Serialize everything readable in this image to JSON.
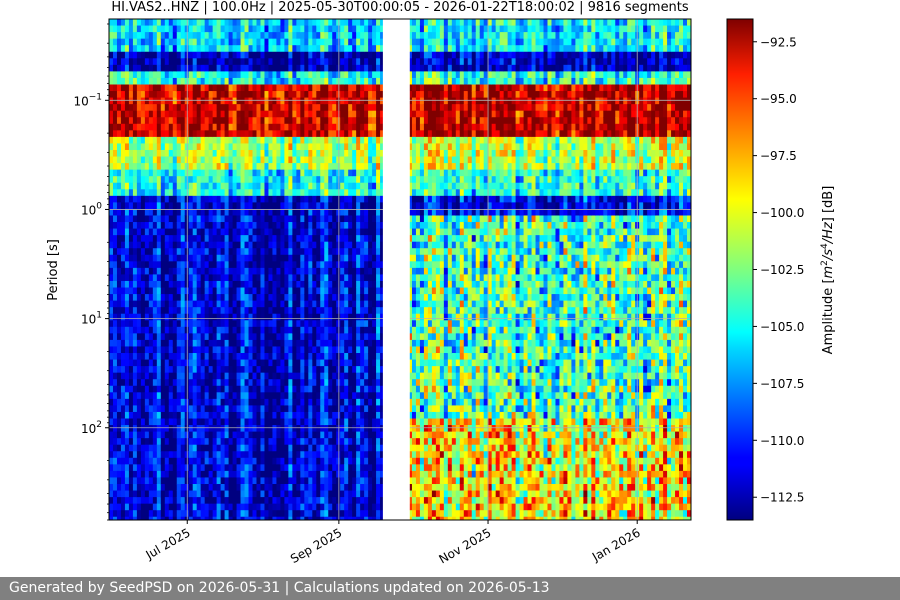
{
  "chart_data": {
    "type": "heatmap",
    "title": "HI.VAS2..HNZ | 100.0Hz | 2025-05-30T00:00:05 - 2026-01-22T18:00:02 | 9816 segments",
    "ylabel": "Period [s]",
    "colorbar_label": "Amplitude [m²/s⁴/Hz] [dB]",
    "y_scale": "log",
    "y_inverted": true,
    "ylim": [
      0.018,
      700
    ],
    "y_ticks": [
      {
        "value": 0.1,
        "base": "10",
        "exp": "−1"
      },
      {
        "value": 1,
        "base": "10",
        "exp": "0"
      },
      {
        "value": 10,
        "base": "10",
        "exp": "1"
      },
      {
        "value": 100,
        "base": "10",
        "exp": "2"
      }
    ],
    "xlim": [
      "2025-05-30",
      "2026-01-23"
    ],
    "x_ticks": [
      {
        "label": "Jul 2025",
        "date": "2025-07-01"
      },
      {
        "label": "Sep 2025",
        "date": "2025-09-01"
      },
      {
        "label": "Nov 2025",
        "date": "2025-11-01"
      },
      {
        "label": "Jan 2026",
        "date": "2026-01-01"
      }
    ],
    "data_gap": [
      "2025-09-19",
      "2025-09-30"
    ],
    "color_range": [
      -113.5,
      -91.5
    ],
    "colorbar_ticks": [
      "−92.5",
      "−95.0",
      "−97.5",
      "−100.0",
      "−102.5",
      "−105.0",
      "−107.5",
      "−110.0",
      "−112.5"
    ],
    "colorbar_tick_values": [
      -92.5,
      -95.0,
      -97.5,
      -100.0,
      -102.5,
      -105.0,
      -107.5,
      -110.0,
      -112.5
    ],
    "colormap": "jet",
    "grid": true
  },
  "footer": {
    "text": "Generated by SeedPSD on 2026-05-31 | Calculations updated on 2026-05-13"
  }
}
